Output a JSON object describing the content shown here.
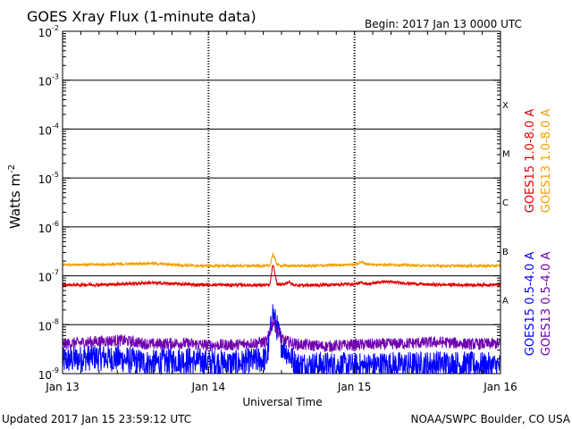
{
  "chart_data": {
    "type": "line",
    "title": "GOES Xray Flux (1-minute data)",
    "begin_label": "Begin:  2017 Jan 13 0000 UTC",
    "xlabel": "Universal Time",
    "ylabel_main": "Watts m",
    "ylabel_exp": "-2",
    "y_scale": "log",
    "ylim": [
      1e-09,
      0.01
    ],
    "x_days_range": [
      0,
      3
    ],
    "x_ticks": [
      "Jan 13",
      "Jan 14",
      "Jan 15",
      "Jan 16"
    ],
    "y_ticks": [
      {
        "base": "10",
        "exp": "-2",
        "value": 0.01
      },
      {
        "base": "10",
        "exp": "-3",
        "value": 0.001
      },
      {
        "base": "10",
        "exp": "-4",
        "value": 0.0001
      },
      {
        "base": "10",
        "exp": "-5",
        "value": 1e-05
      },
      {
        "base": "10",
        "exp": "-6",
        "value": 1e-06
      },
      {
        "base": "10",
        "exp": "-7",
        "value": 1e-07
      },
      {
        "base": "10",
        "exp": "-8",
        "value": 1e-08
      },
      {
        "base": "10",
        "exp": "-9",
        "value": 1e-09
      }
    ],
    "flare_classes": [
      {
        "label": "X",
        "value": 0.00032
      },
      {
        "label": "M",
        "value": 3.2e-05
      },
      {
        "label": "C",
        "value": 3.2e-06
      },
      {
        "label": "B",
        "value": 3.2e-07
      },
      {
        "label": "A",
        "value": 3.2e-08
      }
    ],
    "grid": true,
    "legend_position": "right, vertical",
    "series": [
      {
        "name": "GOES15 1.0-8.0 A",
        "color": "#e00000",
        "x_days": [
          0,
          0.3,
          0.6,
          0.9,
          1.2,
          1.42,
          1.44,
          1.47,
          1.5,
          1.55,
          1.58,
          1.7,
          2.0,
          2.05,
          2.1,
          2.2,
          2.5,
          2.8,
          3.0
        ],
        "values": [
          6.5e-08,
          6.6e-08,
          7.2e-08,
          6.6e-08,
          6.5e-08,
          6.4e-08,
          1.7e-07,
          6.8e-08,
          6.5e-08,
          7.5e-08,
          6.5e-08,
          6.4e-08,
          6.8e-08,
          7.2e-08,
          6.8e-08,
          7.6e-08,
          6.6e-08,
          6.5e-08,
          6.6e-08
        ]
      },
      {
        "name": "GOES13 1.0-8.0 A",
        "color": "#f0a000",
        "x_days": [
          0,
          0.3,
          0.6,
          0.9,
          1.2,
          1.42,
          1.44,
          1.47,
          1.5,
          1.7,
          2.0,
          2.05,
          2.1,
          2.2,
          2.5,
          2.8,
          3.0
        ],
        "values": [
          1.7e-07,
          1.7e-07,
          1.8e-07,
          1.6e-07,
          1.6e-07,
          1.6e-07,
          2.8e-07,
          1.7e-07,
          1.6e-07,
          1.6e-07,
          1.7e-07,
          1.9e-07,
          1.7e-07,
          1.7e-07,
          1.6e-07,
          1.6e-07,
          1.6e-07
        ]
      },
      {
        "name": "GOES15 0.5-4.0 A",
        "color": "#0000ff",
        "x_days": [
          0,
          0.2,
          0.4,
          0.6,
          0.8,
          1.0,
          1.2,
          1.4,
          1.44,
          1.5,
          1.6,
          1.8,
          2.0,
          2.2,
          2.4,
          2.6,
          2.8,
          3.0
        ],
        "values": [
          1.8e-09,
          2.2e-09,
          2e-09,
          1.6e-09,
          1.9e-09,
          1.7e-09,
          1.6e-09,
          2e-09,
          1.8e-08,
          4e-09,
          1.5e-09,
          1.5e-09,
          1.4e-09,
          1.5e-09,
          1.5e-09,
          1.6e-09,
          1.5e-09,
          1.4e-09
        ]
      },
      {
        "name": "GOES13 0.5-4.0 A",
        "color": "#7000b0",
        "x_days": [
          0,
          0.2,
          0.4,
          0.6,
          0.8,
          1.0,
          1.2,
          1.4,
          1.44,
          1.5,
          1.6,
          1.8,
          2.0,
          2.2,
          2.4,
          2.6,
          2.8,
          3.0
        ],
        "values": [
          4e-09,
          4.5e-09,
          4.8e-09,
          4e-09,
          4.2e-09,
          3.8e-09,
          3.9e-09,
          4.5e-09,
          1.2e-08,
          5e-09,
          4e-09,
          3.6e-09,
          3.9e-09,
          4e-09,
          4.2e-09,
          4.4e-09,
          4e-09,
          4.1e-09
        ]
      }
    ],
    "footer_left": "Updated 2017 Jan 15 23:59:12 UTC",
    "footer_right": "NOAA/SWPC Boulder, CO USA"
  }
}
